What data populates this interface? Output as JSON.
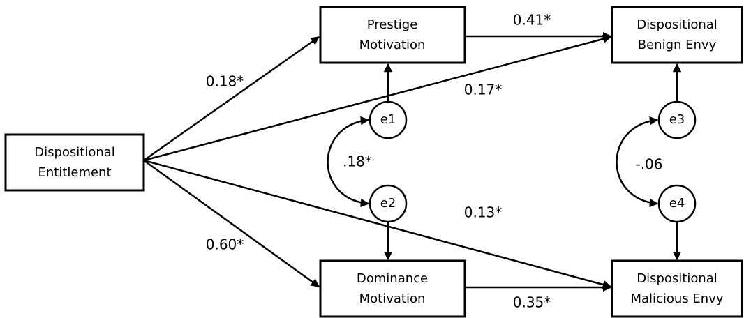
{
  "nodes": [
    {
      "lines": [
        "Dispositional",
        "Entitlement"
      ]
    },
    {
      "lines": [
        "Prestige",
        "Motivation"
      ]
    },
    {
      "lines": [
        "Dominance",
        "Motivation"
      ]
    },
    {
      "lines": [
        "Dispositional",
        "Benign Envy"
      ]
    },
    {
      "lines": [
        "Dispositional",
        "Malicious Envy"
      ]
    }
  ],
  "errors": [
    "e1",
    "e2",
    "e3",
    "e4"
  ],
  "paths": [
    {
      "label": "0.18*"
    },
    {
      "label": "0.41*"
    },
    {
      "label": "0.17*"
    },
    {
      "label": ".18*"
    },
    {
      "label": "0.60*"
    },
    {
      "label": "0.13*"
    },
    {
      "label": "0.35*"
    },
    {
      "label": "-.06"
    }
  ]
}
